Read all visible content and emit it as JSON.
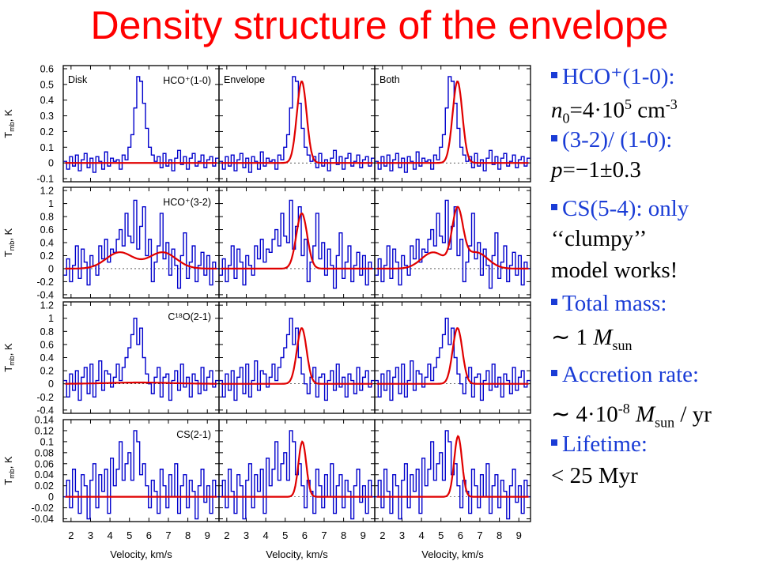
{
  "title": "Density structure of the envelope",
  "bullets": [
    {
      "kind": "head",
      "text": "HCO⁺(1-0):"
    },
    {
      "kind": "plain",
      "html": "<span class='it'>n</span><sub>0</sub>=4·10<sup>5</sup> cm<sup>-3</sup>",
      "text": "n0=4·10^5 cm^-3"
    },
    {
      "kind": "head",
      "text": "(3-2)/ (1-0):"
    },
    {
      "kind": "plain",
      "html": "<span class='it'>p</span>=−1±0.3",
      "text": "p=−1±0.3"
    },
    {
      "kind": "head",
      "text": "CS(5-4):  only"
    },
    {
      "kind": "plain",
      "text": "‘‘clumpy’’"
    },
    {
      "kind": "plain",
      "text": "model works!"
    },
    {
      "kind": "head",
      "text": "Total mass:"
    },
    {
      "kind": "plain",
      "html": "∼ 1 <span class='it'>M</span><sub>sun</sub>",
      "text": "∼ 1 Msun"
    },
    {
      "kind": "head",
      "text": "Accretion rate:"
    },
    {
      "kind": "plain",
      "html": "∼ 4·10<sup>-8</sup> <span class='it'>M</span><sub>sun</sub> / yr",
      "text": "∼ 4·10^-8 Msun / yr"
    },
    {
      "kind": "head",
      "text": "Lifetime:"
    },
    {
      "kind": "plain",
      "text": "< 25 Myr"
    }
  ],
  "colors": {
    "title": "#ff0000",
    "bullet_head": "#1a3cd6",
    "observed": "#0000cc",
    "model": "#e00000"
  },
  "chart_data": {
    "type": "line",
    "columns": [
      "Disk",
      "Envelope",
      "Both"
    ],
    "xlabel": "Velocity, km/s",
    "x_ticks": [
      2,
      3,
      4,
      5,
      6,
      7,
      8,
      9
    ],
    "xlim": [
      1.6,
      9.6
    ],
    "rows": [
      {
        "line": "HCO⁺(1-0)",
        "ylabel": "Tmb, K",
        "ylim": [
          -0.12,
          0.62
        ],
        "yticks": [
          -0.1,
          0,
          0.1,
          0.2,
          0.3,
          0.4,
          0.5,
          0.6
        ],
        "ytick_labels": [
          "-0.1",
          "0",
          "0.1",
          "0.2",
          "0.3",
          "0.4",
          "0.5",
          "0.6"
        ],
        "observed": {
          "x": [
            1.7,
            1.85,
            2.0,
            2.15,
            2.3,
            2.45,
            2.6,
            2.75,
            2.9,
            3.05,
            3.2,
            3.35,
            3.5,
            3.65,
            3.8,
            3.95,
            4.1,
            4.25,
            4.4,
            4.55,
            4.7,
            4.85,
            5.0,
            5.15,
            5.3,
            5.45,
            5.6,
            5.75,
            5.9,
            6.05,
            6.2,
            6.35,
            6.5,
            6.65,
            6.8,
            6.95,
            7.1,
            7.25,
            7.4,
            7.55,
            7.7,
            7.85,
            8.0,
            8.15,
            8.3,
            8.45,
            8.6,
            8.75,
            8.9,
            9.05,
            9.2,
            9.35,
            9.5
          ],
          "y": [
            0.01,
            -0.04,
            0.04,
            -0.02,
            0.05,
            -0.05,
            0.02,
            0.06,
            -0.03,
            0.03,
            -0.06,
            0.04,
            0.01,
            -0.04,
            0.07,
            -0.02,
            0.03,
            0.01,
            0.02,
            -0.04,
            0.05,
            0.02,
            0.1,
            0.18,
            0.35,
            0.55,
            0.52,
            0.38,
            0.22,
            0.1,
            0.05,
            0.01,
            0.04,
            -0.03,
            0.06,
            -0.02,
            0.02,
            -0.05,
            0.03,
            0.08,
            -0.01,
            0.04,
            -0.04,
            0.03,
            0.06,
            -0.02,
            0.01,
            0.05,
            -0.03,
            0.02,
            0.04,
            -0.02,
            0.03
          ]
        },
        "models": [
          {
            "col": "Disk",
            "amp": 0.0,
            "center": 5.8,
            "width": 0.26
          },
          {
            "col": "Envelope",
            "amp": 0.52,
            "center": 5.85,
            "width": 0.25
          },
          {
            "col": "Both",
            "amp": 0.52,
            "center": 5.85,
            "width": 0.25
          }
        ]
      },
      {
        "line": "HCO⁺(3-2)",
        "ylabel": "Tmb, K",
        "ylim": [
          -0.45,
          1.25
        ],
        "yticks": [
          -0.4,
          -0.2,
          0,
          0.2,
          0.4,
          0.6,
          0.8,
          1,
          1.2
        ],
        "ytick_labels": [
          "-0.4",
          "-0.2",
          "0",
          "0.2",
          "0.4",
          "0.6",
          "0.8",
          "1",
          "1.2"
        ],
        "observed": {
          "x": [
            1.7,
            1.85,
            2.0,
            2.15,
            2.3,
            2.45,
            2.6,
            2.75,
            2.9,
            3.05,
            3.2,
            3.35,
            3.5,
            3.65,
            3.8,
            3.95,
            4.1,
            4.25,
            4.4,
            4.55,
            4.7,
            4.85,
            5.0,
            5.15,
            5.3,
            5.45,
            5.6,
            5.75,
            5.9,
            6.05,
            6.2,
            6.35,
            6.5,
            6.65,
            6.8,
            6.95,
            7.1,
            7.25,
            7.4,
            7.55,
            7.7,
            7.85,
            8.0,
            8.15,
            8.3,
            8.45,
            8.6,
            8.75,
            8.9,
            9.05,
            9.2,
            9.35,
            9.5
          ],
          "y": [
            -0.1,
            0.15,
            -0.2,
            0.05,
            0.35,
            -0.15,
            0.3,
            0.1,
            -0.25,
            0.2,
            0.05,
            -0.1,
            0.35,
            0.15,
            0.45,
            0.1,
            0.3,
            0.25,
            0.45,
            0.6,
            0.35,
            0.85,
            0.5,
            0.4,
            1.05,
            0.3,
            0.65,
            0.95,
            0.2,
            0.45,
            -0.2,
            0.1,
            0.35,
            0.85,
            0.15,
            0.4,
            -0.1,
            0.3,
            0.05,
            -0.3,
            0.2,
            0.55,
            -0.15,
            0.1,
            0.35,
            -0.2,
            0.05,
            0.25,
            -0.1,
            0.2,
            -0.25,
            0.1,
            0.0
          ]
        },
        "models": [
          {
            "col": "Disk",
            "type": "double",
            "amp": 0.25,
            "c1": 4.5,
            "c2": 6.7,
            "w": 0.7
          },
          {
            "col": "Envelope",
            "amp": 0.85,
            "center": 5.85,
            "width": 0.28
          },
          {
            "col": "Both",
            "type": "combo",
            "amp": 0.85,
            "center": 5.85,
            "width": 0.28,
            "amp2": 0.25,
            "c1": 4.6,
            "c2": 6.8,
            "w": 0.6
          }
        ]
      },
      {
        "line": "C¹⁸O(2-1)",
        "ylabel": "Tmb, K",
        "ylim": [
          -0.45,
          1.25
        ],
        "yticks": [
          -0.4,
          -0.2,
          0,
          0.2,
          0.4,
          0.6,
          0.8,
          1,
          1.2
        ],
        "ytick_labels": [
          "-0.4",
          "-0.2",
          "0",
          "0.2",
          "0.4",
          "0.6",
          "0.8",
          "1",
          "1.2"
        ],
        "observed": {
          "x": [
            1.7,
            1.85,
            2.0,
            2.15,
            2.3,
            2.45,
            2.6,
            2.75,
            2.9,
            3.05,
            3.2,
            3.35,
            3.5,
            3.65,
            3.8,
            3.95,
            4.1,
            4.25,
            4.4,
            4.55,
            4.7,
            4.85,
            5.0,
            5.15,
            5.3,
            5.45,
            5.6,
            5.75,
            5.9,
            6.05,
            6.2,
            6.35,
            6.5,
            6.65,
            6.8,
            6.95,
            7.1,
            7.25,
            7.4,
            7.55,
            7.7,
            7.85,
            8.0,
            8.15,
            8.3,
            8.45,
            8.6,
            8.75,
            8.9,
            9.05,
            9.2,
            9.35,
            9.5
          ],
          "y": [
            0.05,
            -0.2,
            0.15,
            -0.1,
            0.2,
            -0.25,
            0.1,
            0.25,
            -0.15,
            0.3,
            -0.2,
            0.05,
            0.35,
            -0.1,
            0.2,
            0.15,
            -0.05,
            0.1,
            0.3,
            0.05,
            0.25,
            0.4,
            0.55,
            0.75,
            1.0,
            0.6,
            0.85,
            0.4,
            0.15,
            0.0,
            -0.15,
            0.1,
            0.25,
            -0.2,
            0.1,
            0.15,
            -0.25,
            0.05,
            0.2,
            -0.1,
            0.3,
            -0.05,
            0.1,
            -0.2,
            0.15,
            0.05,
            -0.15,
            0.25,
            -0.1,
            0.1,
            0.2,
            -0.05,
            0.05
          ]
        },
        "models": [
          {
            "col": "Disk",
            "amp": 0.02,
            "center": 5.5,
            "width": 1.6
          },
          {
            "col": "Envelope",
            "amp": 0.85,
            "center": 5.85,
            "width": 0.25
          },
          {
            "col": "Both",
            "amp": 0.85,
            "center": 5.85,
            "width": 0.25
          }
        ]
      },
      {
        "line": "CS(2-1)",
        "ylabel": "Tmb, K",
        "ylim": [
          -0.045,
          0.14
        ],
        "yticks": [
          -0.04,
          -0.02,
          0,
          0.02,
          0.04,
          0.06,
          0.08,
          0.1,
          0.12,
          0.14
        ],
        "ytick_labels": [
          "-0.04",
          "-0.02",
          "0",
          "0.02",
          "0.04",
          "0.06",
          "0.08",
          "0.1",
          "0.12",
          "0.14"
        ],
        "observed": {
          "x": [
            1.7,
            1.85,
            2.0,
            2.15,
            2.3,
            2.45,
            2.6,
            2.75,
            2.9,
            3.05,
            3.2,
            3.35,
            3.5,
            3.65,
            3.8,
            3.95,
            4.1,
            4.25,
            4.4,
            4.55,
            4.7,
            4.85,
            5.0,
            5.15,
            5.3,
            5.45,
            5.6,
            5.75,
            5.9,
            6.05,
            6.2,
            6.35,
            6.5,
            6.65,
            6.8,
            6.95,
            7.1,
            7.25,
            7.4,
            7.55,
            7.7,
            7.85,
            8.0,
            8.15,
            8.3,
            8.45,
            8.6,
            8.75,
            8.9,
            9.05,
            9.2,
            9.35,
            9.5
          ],
          "y": [
            0.0,
            0.03,
            -0.02,
            0.05,
            0.01,
            -0.03,
            0.04,
            0.02,
            -0.04,
            0.03,
            0.06,
            -0.02,
            0.04,
            0.01,
            0.05,
            -0.03,
            0.07,
            0.02,
            0.05,
            0.1,
            0.03,
            0.06,
            0.08,
            0.03,
            0.12,
            0.1,
            0.04,
            0.06,
            0.02,
            -0.02,
            0.03,
            0.01,
            -0.03,
            0.05,
            0.02,
            -0.02,
            0.04,
            0.0,
            0.06,
            -0.03,
            0.02,
            0.04,
            -0.02,
            0.03,
            0.01,
            -0.04,
            0.02,
            0.05,
            -0.01,
            0.02,
            -0.03,
            0.03,
            0.0
          ]
        },
        "models": [
          {
            "col": "Disk",
            "amp": 0.0,
            "center": 5.8,
            "width": 0.26
          },
          {
            "col": "Envelope",
            "amp": 0.1,
            "center": 5.88,
            "width": 0.2
          },
          {
            "col": "Both",
            "amp": 0.11,
            "center": 5.88,
            "width": 0.2
          }
        ]
      }
    ]
  }
}
